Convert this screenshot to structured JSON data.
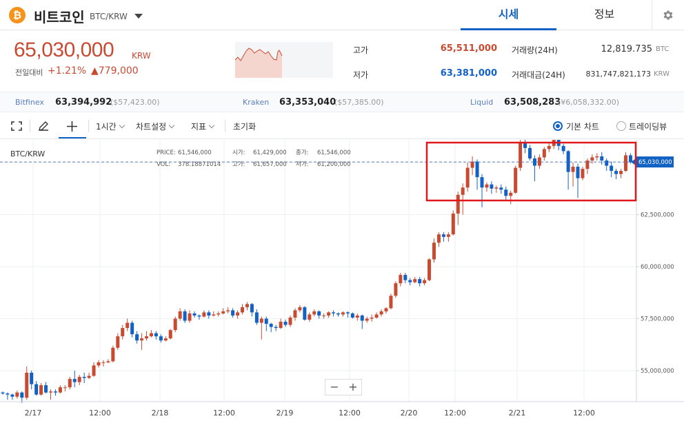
{
  "header": {
    "coin_icon": "bitcoin-icon",
    "coin_icon_glyph": "₿",
    "coin_name": "비트코인",
    "pair": "BTC/KRW",
    "tabs": [
      {
        "label": "시세",
        "active": true
      },
      {
        "label": "정보",
        "active": false
      }
    ],
    "settings_icon": "gear-icon"
  },
  "price": {
    "current": "65,030,000",
    "unit": "KRW",
    "change_label": "전일대비",
    "change_rate": "+1.21%",
    "change_amount": "▲779,000",
    "color_up": "#c84a31",
    "color_down": "#1261c4"
  },
  "stats": {
    "high_label": "고가",
    "high": "65,511,000",
    "low_label": "저가",
    "low": "63,381,000",
    "volume_label": "거래량(24H)",
    "volume": "12,819.735",
    "volume_unit": "BTC",
    "value_label": "거래대금(24H)",
    "value": "831,747,821,173",
    "value_unit": "KRW"
  },
  "exchanges": [
    {
      "name": "Bitfinex",
      "price": "63,394,992",
      "sub": "($57,423.00)"
    },
    {
      "name": "Kraken",
      "price": "63,353,040",
      "sub": "($57,385.00)"
    },
    {
      "name": "Liquid",
      "price": "63,508,283",
      "sub": "(¥6,058,332.00)"
    }
  ],
  "toolbar": {
    "fullscreen_icon": "fullscreen-icon",
    "draw_icon": "pencil-icon",
    "crosshair_icon": "crosshair-icon",
    "interval": "1시간",
    "chart_settings": "차트설정",
    "indicators": "지표",
    "reset": "초기화",
    "chart_modes": [
      {
        "label": "기본 차트",
        "selected": true
      },
      {
        "label": "트레이딩뷰",
        "selected": false
      }
    ]
  },
  "chart_info": {
    "pair": "BTC/KRW",
    "price_label": "PRICE:",
    "price": "61,546,000",
    "vol_label": "VOL:",
    "vol": "378.18871014",
    "open_label": "시가:",
    "open": "61,429,000",
    "high_label": "고가:",
    "high": "61,657,000",
    "close_label": "종가:",
    "close": "61,546,000",
    "low_label": "저가:",
    "low": "61,200,000",
    "current_tag": "65,030,000"
  },
  "zoom": {
    "minus": "−",
    "plus": "+"
  },
  "chart_data": {
    "type": "candlestick",
    "y_ticks": [
      "65,000,000",
      "62,500,000",
      "60,000,000",
      "57,500,000",
      "55,000,000"
    ],
    "y_tick_values": [
      65000000,
      62500000,
      60000000,
      57500000,
      55000000
    ],
    "x_ticks": [
      "2/17",
      "12:00",
      "2/18",
      "12:00",
      "2/19",
      "12:00",
      "2/20",
      "12:00",
      "2/21",
      "12:00"
    ],
    "current_price": 65030000,
    "up_color": "#c84a31",
    "down_color": "#1261c4",
    "highlight_box_color": "#e0171b",
    "candles": [
      [
        53.95,
        53.9,
        54.0,
        53.85
      ],
      [
        53.9,
        53.85,
        53.95,
        53.6
      ],
      [
        53.85,
        53.75,
        53.9,
        53.6
      ],
      [
        53.75,
        53.95,
        54.05,
        53.65
      ],
      [
        53.95,
        53.7,
        54.0,
        53.45
      ],
      [
        53.7,
        54.9,
        55.2,
        53.6
      ],
      [
        54.9,
        54.35,
        55.0,
        54.1
      ],
      [
        54.35,
        53.85,
        54.5,
        53.8
      ],
      [
        53.85,
        54.3,
        54.4,
        53.8
      ],
      [
        54.3,
        53.95,
        54.45,
        53.9
      ],
      [
        53.95,
        54.0,
        54.1,
        53.6
      ],
      [
        54.0,
        53.95,
        54.1,
        53.8
      ],
      [
        53.95,
        54.2,
        54.3,
        53.9
      ],
      [
        54.2,
        54.2,
        54.3,
        54.0
      ],
      [
        54.2,
        54.6,
        54.7,
        54.1
      ],
      [
        54.6,
        54.45,
        55.0,
        54.2
      ],
      [
        54.45,
        54.7,
        54.8,
        54.3
      ],
      [
        54.7,
        54.65,
        54.9,
        54.4
      ],
      [
        54.65,
        54.75,
        54.9,
        54.6
      ],
      [
        54.75,
        55.25,
        55.4,
        54.7
      ],
      [
        55.25,
        55.4,
        55.5,
        55.15
      ],
      [
        55.4,
        55.4,
        55.5,
        55.2
      ],
      [
        55.4,
        55.45,
        55.55,
        55.35
      ],
      [
        55.45,
        56.1,
        56.2,
        55.4
      ],
      [
        56.1,
        56.65,
        56.8,
        56.0
      ],
      [
        56.65,
        57.05,
        57.2,
        56.5
      ],
      [
        57.05,
        57.3,
        57.5,
        56.9
      ],
      [
        57.3,
        56.75,
        57.4,
        56.6
      ],
      [
        56.75,
        56.45,
        56.9,
        56.3
      ],
      [
        56.45,
        56.55,
        56.8,
        56.0
      ],
      [
        56.55,
        56.65,
        56.9,
        56.45
      ],
      [
        56.65,
        56.8,
        56.95,
        56.6
      ],
      [
        56.8,
        56.65,
        56.9,
        56.5
      ],
      [
        56.65,
        56.45,
        56.75,
        56.35
      ],
      [
        56.45,
        56.55,
        56.65,
        56.4
      ],
      [
        56.55,
        56.95,
        57.0,
        56.5
      ],
      [
        56.95,
        57.5,
        57.6,
        56.85
      ],
      [
        57.5,
        57.85,
        58.0,
        57.4
      ],
      [
        57.85,
        57.4,
        57.95,
        57.3
      ],
      [
        57.4,
        57.75,
        57.9,
        57.3
      ],
      [
        57.75,
        57.65,
        57.85,
        57.55
      ],
      [
        57.65,
        57.6,
        57.7,
        57.45
      ],
      [
        57.6,
        57.8,
        57.9,
        57.55
      ],
      [
        57.8,
        57.65,
        57.9,
        57.5
      ],
      [
        57.65,
        57.7,
        57.85,
        57.6
      ],
      [
        57.7,
        57.75,
        57.85,
        57.6
      ],
      [
        57.75,
        57.85,
        58.0,
        57.7
      ],
      [
        57.85,
        57.9,
        58.05,
        57.75
      ],
      [
        57.9,
        57.65,
        58.0,
        57.55
      ],
      [
        57.65,
        57.8,
        57.9,
        57.5
      ],
      [
        57.8,
        58.05,
        58.2,
        57.7
      ],
      [
        58.05,
        58.2,
        58.3,
        57.9
      ],
      [
        58.2,
        57.8,
        58.25,
        57.6
      ],
      [
        57.8,
        57.3,
        57.95,
        57.2
      ],
      [
        57.3,
        57.5,
        57.6,
        56.5
      ],
      [
        57.5,
        57.25,
        57.6,
        56.9
      ],
      [
        57.25,
        57.1,
        57.3,
        56.85
      ],
      [
        57.1,
        57.05,
        57.2,
        56.9
      ],
      [
        57.05,
        57.35,
        57.5,
        57.0
      ],
      [
        57.35,
        57.2,
        57.45,
        57.1
      ],
      [
        57.2,
        57.55,
        57.65,
        57.1
      ],
      [
        57.55,
        57.9,
        58.0,
        57.4
      ],
      [
        57.9,
        58.05,
        58.15,
        57.8
      ],
      [
        58.05,
        57.45,
        58.1,
        57.4
      ],
      [
        57.45,
        57.7,
        57.8,
        57.35
      ],
      [
        57.7,
        57.85,
        57.95,
        57.6
      ],
      [
        57.85,
        57.65,
        57.9,
        57.5
      ],
      [
        57.65,
        57.65,
        57.75,
        57.5
      ],
      [
        57.65,
        57.8,
        57.85,
        57.55
      ],
      [
        57.8,
        57.75,
        57.9,
        57.6
      ],
      [
        57.75,
        57.7,
        57.8,
        57.6
      ],
      [
        57.7,
        57.8,
        57.85,
        57.6
      ],
      [
        57.8,
        57.75,
        57.85,
        57.55
      ],
      [
        57.75,
        57.55,
        57.8,
        57.5
      ],
      [
        57.55,
        57.65,
        57.75,
        57.4
      ],
      [
        57.65,
        57.4,
        57.7,
        57.0
      ],
      [
        57.4,
        57.5,
        57.6,
        57.3
      ],
      [
        57.5,
        57.55,
        57.7,
        57.35
      ],
      [
        57.55,
        57.7,
        57.8,
        57.5
      ],
      [
        57.7,
        57.85,
        57.95,
        57.6
      ],
      [
        57.85,
        58.0,
        58.05,
        57.75
      ],
      [
        58.0,
        58.6,
        58.7,
        57.95
      ],
      [
        58.6,
        59.2,
        59.3,
        58.5
      ],
      [
        59.2,
        59.6,
        59.7,
        59.05
      ],
      [
        59.6,
        59.35,
        59.7,
        59.2
      ],
      [
        59.35,
        59.25,
        59.45,
        59.1
      ],
      [
        59.25,
        59.4,
        59.5,
        59.2
      ],
      [
        59.4,
        59.2,
        59.5,
        59.05
      ],
      [
        59.2,
        59.35,
        59.45,
        59.1
      ],
      [
        59.35,
        60.35,
        60.4,
        59.3
      ],
      [
        60.35,
        61.15,
        61.35,
        60.2
      ],
      [
        61.15,
        61.55,
        61.65,
        60.95
      ],
      [
        61.55,
        61.43,
        61.66,
        61.2
      ],
      [
        61.43,
        61.55,
        61.66,
        61.2
      ],
      [
        61.55,
        62.55,
        62.7,
        61.5
      ],
      [
        62.55,
        63.45,
        63.6,
        62.0
      ],
      [
        63.45,
        63.8,
        64.0,
        62.5
      ],
      [
        63.8,
        64.75,
        65.0,
        63.6
      ],
      [
        64.75,
        65.05,
        65.3,
        64.4
      ],
      [
        65.05,
        64.3,
        65.15,
        63.7
      ],
      [
        64.3,
        63.8,
        64.45,
        62.85
      ],
      [
        63.8,
        63.95,
        64.05,
        63.6
      ],
      [
        63.95,
        63.75,
        64.1,
        63.5
      ],
      [
        63.75,
        63.8,
        63.9,
        63.55
      ],
      [
        63.8,
        63.7,
        63.95,
        63.5
      ],
      [
        63.7,
        63.4,
        63.85,
        63.2
      ],
      [
        63.4,
        63.55,
        63.65,
        63.0
      ],
      [
        63.55,
        64.75,
        64.85,
        63.5
      ],
      [
        64.75,
        65.95,
        66.3,
        64.6
      ],
      [
        65.95,
        65.7,
        66.1,
        65.45
      ],
      [
        65.7,
        65.2,
        65.85,
        65.1
      ],
      [
        65.2,
        64.85,
        65.35,
        64.1
      ],
      [
        64.85,
        65.25,
        65.4,
        64.7
      ],
      [
        65.25,
        65.65,
        65.75,
        65.1
      ],
      [
        65.65,
        65.8,
        65.95,
        65.5
      ],
      [
        65.8,
        66.1,
        66.2,
        65.65
      ],
      [
        66.1,
        65.8,
        66.15,
        65.6
      ],
      [
        65.8,
        65.55,
        65.9,
        65.4
      ],
      [
        65.55,
        64.55,
        65.6,
        63.7
      ],
      [
        64.55,
        64.8,
        65.0,
        63.85
      ],
      [
        64.8,
        64.25,
        64.95,
        63.3
      ],
      [
        64.25,
        64.7,
        64.8,
        64.15
      ],
      [
        64.7,
        65.1,
        65.2,
        64.45
      ],
      [
        65.1,
        65.25,
        65.4,
        64.95
      ],
      [
        65.25,
        65.3,
        65.45,
        65.1
      ],
      [
        65.3,
        65.1,
        65.5,
        64.9
      ],
      [
        65.1,
        64.85,
        65.2,
        64.6
      ],
      [
        64.85,
        64.6,
        65.05,
        64.3
      ],
      [
        64.6,
        64.45,
        64.7,
        64.2
      ],
      [
        64.45,
        64.6,
        64.7,
        64.25
      ],
      [
        64.6,
        65.35,
        65.5,
        64.55
      ],
      [
        65.35,
        65.03,
        65.45,
        64.95
      ]
    ]
  }
}
